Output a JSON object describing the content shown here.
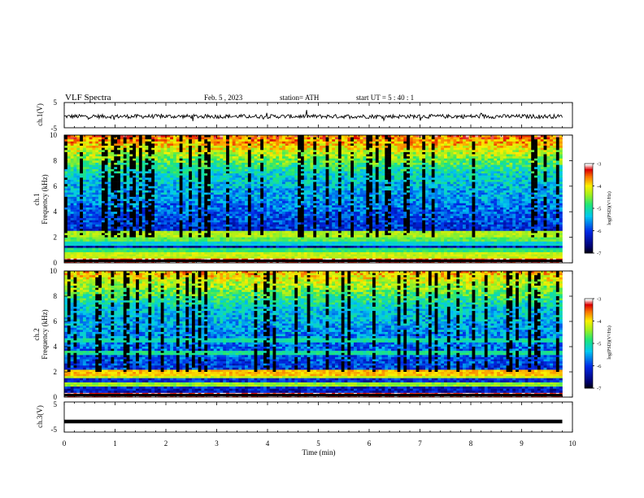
{
  "header": {
    "title": "VLF  Spectra",
    "date": "Feb. 5  , 2023",
    "station": "station= ATH",
    "start": "start  UT  =   5  : 40 : 1"
  },
  "chart_data": [
    {
      "type": "line",
      "panel": "ch1-waveform",
      "ylabel": "ch.1(V)",
      "ylim": [
        -5,
        5
      ],
      "y_ticks": [
        "5",
        "-5"
      ],
      "x_range_min": [
        0,
        9.8
      ],
      "description_values": "noisy signal centered near -0.5 V with amplitude about ±1 V"
    },
    {
      "type": "heatmap",
      "panel": "ch1-spectrogram",
      "ylabel": "Frequency  (kHz)",
      "channel_label": "ch.1",
      "ylim": [
        0,
        10
      ],
      "y_ticks": [
        "0",
        "2",
        "4",
        "6",
        "8",
        "10"
      ],
      "x_range_min": [
        0,
        9.8
      ],
      "colorbar": {
        "label": "log(PSD)(V²/Hz)",
        "range": [
          -7,
          -3
        ],
        "ticks": [
          "-3",
          "-4",
          "-5",
          "-6",
          "-7"
        ]
      },
      "bands_khz": [
        {
          "f": 0.1,
          "level": -3.2
        },
        {
          "f": 0.6,
          "level": -4.2
        },
        {
          "f": 1.0,
          "level": -4.8
        },
        {
          "f": 1.5,
          "level": -5.2
        },
        {
          "f": 2.0,
          "level": -4.6
        },
        {
          "f": 2.2,
          "level": -4.3
        },
        {
          "f": 4.4,
          "level": -6.8
        },
        {
          "f": 5.0,
          "level": -5.8
        }
      ],
      "high_freq_level": -4.5,
      "low_level": -6.6
    },
    {
      "type": "heatmap",
      "panel": "ch2-spectrogram",
      "ylabel": "Frequency  (kHz)",
      "channel_label": "ch.2",
      "ylim": [
        0,
        10
      ],
      "y_ticks": [
        "0",
        "2",
        "4",
        "6",
        "8",
        "10"
      ],
      "x_range_min": [
        0,
        9.8
      ],
      "colorbar": {
        "label": "log(PSD)(V²/Hz)",
        "range": [
          -7,
          -3
        ],
        "ticks": [
          "-3",
          "-4",
          "-5",
          "-6",
          "-7"
        ]
      },
      "bands_khz": [
        {
          "f": 0.1,
          "level": -3.2
        },
        {
          "f": 1.0,
          "level": -4.4
        },
        {
          "f": 1.8,
          "level": -4.2
        },
        {
          "f": 2.0,
          "level": -3.8
        },
        {
          "f": 3.5,
          "level": -4.9
        },
        {
          "f": 4.5,
          "level": -5.0
        }
      ],
      "high_freq_level": -4.8,
      "low_level": -6.3
    },
    {
      "type": "line",
      "panel": "ch3-waveform",
      "ylabel": "ch.3(V)",
      "ylim": [
        -5,
        5
      ],
      "y_ticks": [
        "5",
        "-5"
      ],
      "x_range_min": [
        0,
        9.8
      ],
      "description_values": "flat thick trace at about -1.5 V"
    }
  ],
  "x_axis": {
    "label": "Time  (min)",
    "ticks": [
      "0",
      "1",
      "2",
      "3",
      "4",
      "5",
      "6",
      "7",
      "8",
      "9",
      "10"
    ],
    "range": [
      0,
      10
    ]
  }
}
